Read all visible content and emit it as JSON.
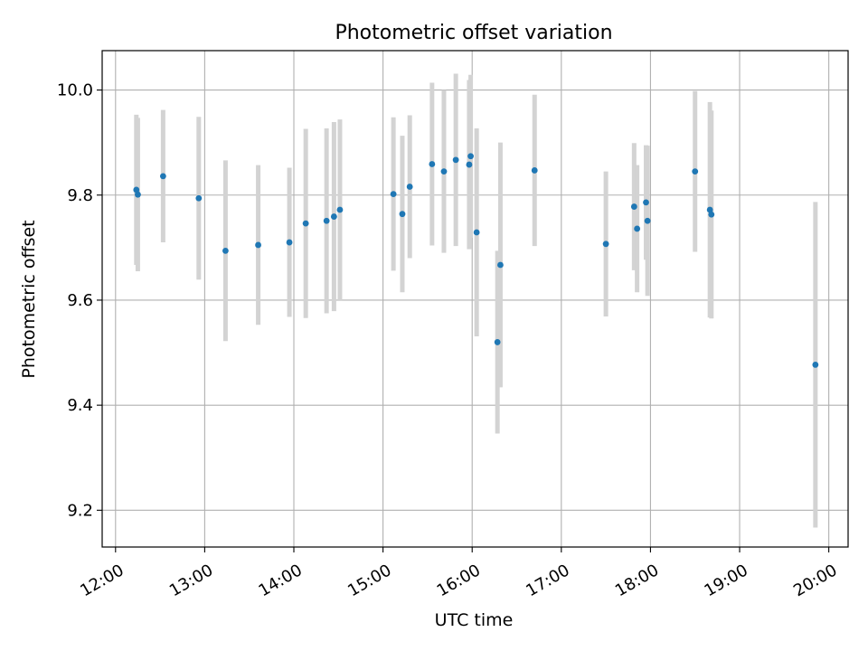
{
  "chart_data": {
    "type": "scatter",
    "title": "Photometric offset variation",
    "xlabel": "UTC time",
    "ylabel": "Photometric offset",
    "grid": true,
    "x_tick_labels": [
      "12:00",
      "13:00",
      "14:00",
      "15:00",
      "16:00",
      "17:00",
      "18:00",
      "19:00",
      "20:00"
    ],
    "y_tick_labels": [
      "9.2",
      "9.4",
      "9.6",
      "9.8",
      "10.0"
    ],
    "x_range": [
      "11:51",
      "20:13"
    ],
    "y_range": [
      9.13,
      10.075
    ],
    "colors": {
      "marker": "#1f77b4",
      "errorbar": "#d3d3d3",
      "grid": "#b0b0b0"
    },
    "points": [
      {
        "x": "12:14",
        "y": 9.81,
        "err": 0.143
      },
      {
        "x": "12:15",
        "y": 9.801,
        "err": 0.146
      },
      {
        "x": "12:32",
        "y": 9.836,
        "err": 0.126
      },
      {
        "x": "12:56",
        "y": 9.794,
        "err": 0.155
      },
      {
        "x": "13:14",
        "y": 9.694,
        "err": 0.172
      },
      {
        "x": "13:36",
        "y": 9.705,
        "err": 0.152
      },
      {
        "x": "13:57",
        "y": 9.71,
        "err": 0.142
      },
      {
        "x": "14:08",
        "y": 9.746,
        "err": 0.18
      },
      {
        "x": "14:22",
        "y": 9.751,
        "err": 0.176
      },
      {
        "x": "14:27",
        "y": 9.759,
        "err": 0.18
      },
      {
        "x": "14:31",
        "y": 9.772,
        "err": 0.172
      },
      {
        "x": "15:07",
        "y": 9.802,
        "err": 0.146
      },
      {
        "x": "15:13",
        "y": 9.764,
        "err": 0.149
      },
      {
        "x": "15:18",
        "y": 9.816,
        "err": 0.136
      },
      {
        "x": "15:33",
        "y": 9.859,
        "err": 0.155
      },
      {
        "x": "15:41",
        "y": 9.845,
        "err": 0.155
      },
      {
        "x": "15:49",
        "y": 9.867,
        "err": 0.164
      },
      {
        "x": "15:58",
        "y": 9.858,
        "err": 0.161
      },
      {
        "x": "15:59",
        "y": 9.874,
        "err": 0.155
      },
      {
        "x": "16:03",
        "y": 9.729,
        "err": 0.198
      },
      {
        "x": "16:17",
        "y": 9.52,
        "err": 0.174
      },
      {
        "x": "16:19",
        "y": 9.667,
        "err": 0.233
      },
      {
        "x": "16:42",
        "y": 9.847,
        "err": 0.144
      },
      {
        "x": "17:30",
        "y": 9.707,
        "err": 0.138
      },
      {
        "x": "17:49",
        "y": 9.778,
        "err": 0.121
      },
      {
        "x": "17:51",
        "y": 9.736,
        "err": 0.121
      },
      {
        "x": "17:57",
        "y": 9.786,
        "err": 0.109
      },
      {
        "x": "17:58",
        "y": 9.751,
        "err": 0.143
      },
      {
        "x": "18:30",
        "y": 9.845,
        "err": 0.153
      },
      {
        "x": "18:40",
        "y": 9.772,
        "err": 0.205
      },
      {
        "x": "18:41",
        "y": 9.763,
        "err": 0.198
      },
      {
        "x": "19:51",
        "y": 9.477,
        "err": 0.31
      }
    ]
  }
}
